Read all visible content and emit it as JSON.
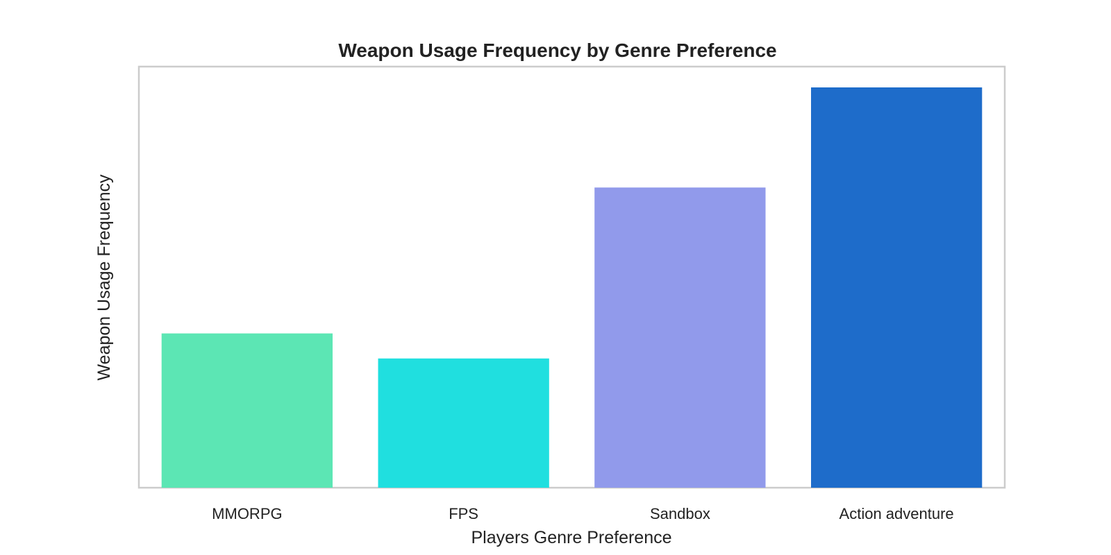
{
  "chart_data": {
    "type": "bar",
    "title": "Weapon Usage Frequency by Genre Preference",
    "xlabel": "Players Genre Preference",
    "ylabel": "Weapon Usage Frequency",
    "categories": [
      "MMORPG",
      "FPS",
      "Sandbox",
      "Action adventure"
    ],
    "values": [
      0.37,
      0.31,
      0.72,
      0.96
    ],
    "ylim": [
      0,
      1.01
    ],
    "colors": [
      "#5ce6b4",
      "#20dfdf",
      "#919aeb",
      "#1e6cca"
    ],
    "grid": false,
    "legend": "none",
    "y_ticks_visible": false
  }
}
